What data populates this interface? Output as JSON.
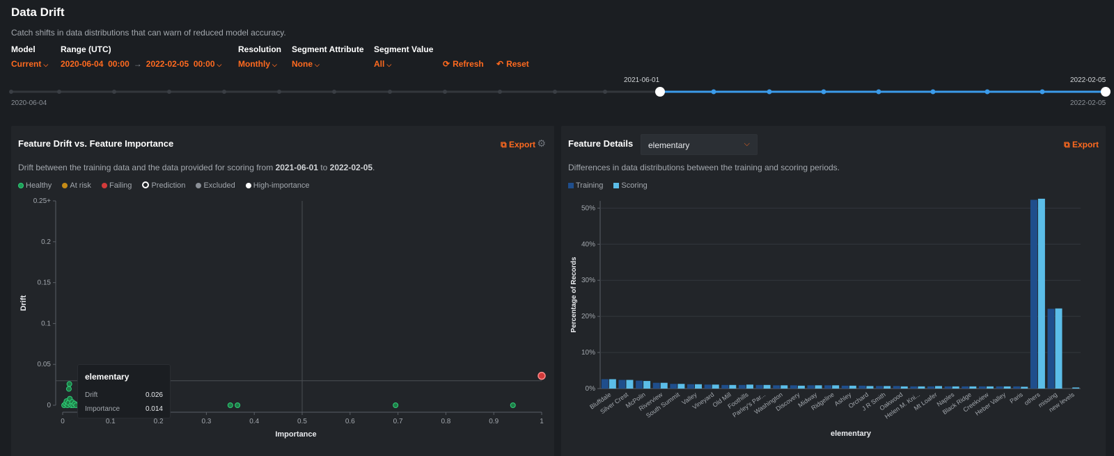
{
  "header": {
    "title": "Data Drift",
    "subtitle": "Catch shifts in data distributions that can warn of reduced model accuracy."
  },
  "controls": {
    "model": {
      "label": "Model",
      "value": "Current"
    },
    "range": {
      "label": "Range (UTC)",
      "start_date": "2020-06-04",
      "start_time": "00:00",
      "end_date": "2022-02-05",
      "end_time": "00:00"
    },
    "resolution": {
      "label": "Resolution",
      "value": "Monthly"
    },
    "segment_attribute": {
      "label": "Segment Attribute",
      "value": "None"
    },
    "segment_value": {
      "label": "Segment Value",
      "value": "All"
    },
    "refresh_label": "Refresh",
    "reset_label": "Reset"
  },
  "timeline": {
    "start_label": "2020-06-04",
    "end_label": "2022-02-05",
    "selected_start_label": "2021-06-01",
    "selected_end_label": "2022-02-05",
    "accent_color": "#3b9bea"
  },
  "drift_panel": {
    "title": "Feature Drift vs. Feature Importance",
    "export_label": "Export",
    "description_prefix": "Drift between the training data and the data provided for scoring from",
    "description_from": "2021-06-01",
    "description_to_word": "to",
    "description_to": "2022-02-05",
    "legend": [
      {
        "label": "Healthy",
        "color": "#1e9e57"
      },
      {
        "label": "At risk",
        "color": "#c58b16"
      },
      {
        "label": "Failing",
        "color": "#d23a3a"
      },
      {
        "label": "Prediction",
        "color": "#ffffff"
      },
      {
        "label": "Excluded",
        "color": "#8b9097"
      },
      {
        "label": "High-importance",
        "color": "#ffffff"
      }
    ],
    "tooltip": {
      "feature": "elementary",
      "drift_label": "Drift",
      "drift_value": "0.026",
      "importance_label": "Importance",
      "importance_value": "0.014"
    }
  },
  "details_panel": {
    "title": "Feature Details",
    "selected_feature": "elementary",
    "export_label": "Export",
    "description": "Differences in data distributions between the training and scoring periods.",
    "legend_training": "Training",
    "legend_scoring": "Scoring"
  },
  "chart_data": [
    {
      "type": "scatter",
      "title": "Feature Drift vs. Feature Importance",
      "xlabel": "Importance",
      "ylabel": "Drift",
      "xlim": [
        0,
        1
      ],
      "ylim": [
        0,
        0.25
      ],
      "x_ticks": [
        "0",
        "0.1",
        "0.2",
        "0.3",
        "0.4",
        "0.5",
        "0.6",
        "0.7",
        "0.8",
        "0.9",
        "1"
      ],
      "y_ticks": [
        "0",
        "0.05",
        "0.1",
        "0.15",
        "0.2",
        "0.25+"
      ],
      "threshold_x": 0.5,
      "threshold_y": 0.03,
      "points": [
        {
          "x": 0.003,
          "y": 0.0,
          "status": "healthy"
        },
        {
          "x": 0.006,
          "y": 0.002,
          "status": "healthy"
        },
        {
          "x": 0.008,
          "y": 0.005,
          "status": "healthy"
        },
        {
          "x": 0.01,
          "y": 0.0,
          "status": "healthy"
        },
        {
          "x": 0.012,
          "y": 0.003,
          "status": "healthy"
        },
        {
          "x": 0.014,
          "y": 0.026,
          "status": "healthy"
        },
        {
          "x": 0.013,
          "y": 0.02,
          "status": "healthy"
        },
        {
          "x": 0.015,
          "y": 0.008,
          "status": "healthy"
        },
        {
          "x": 0.018,
          "y": 0.0,
          "status": "healthy"
        },
        {
          "x": 0.02,
          "y": 0.004,
          "status": "healthy"
        },
        {
          "x": 0.022,
          "y": 0.0,
          "status": "healthy"
        },
        {
          "x": 0.025,
          "y": 0.002,
          "status": "healthy"
        },
        {
          "x": 0.028,
          "y": 0.0,
          "status": "healthy"
        },
        {
          "x": 0.35,
          "y": 0.0,
          "status": "healthy"
        },
        {
          "x": 0.365,
          "y": 0.0,
          "status": "healthy"
        },
        {
          "x": 0.695,
          "y": 0.0,
          "status": "healthy"
        },
        {
          "x": 0.94,
          "y": 0.0,
          "status": "healthy"
        },
        {
          "x": 1.0,
          "y": 0.036,
          "status": "failing"
        }
      ]
    },
    {
      "type": "bar",
      "xlabel": "elementary",
      "ylabel": "Percentage of Records",
      "ylim": [
        0,
        52
      ],
      "y_ticks": [
        "0%",
        "10%",
        "20%",
        "30%",
        "40%",
        "50%"
      ],
      "categories": [
        "Bluffdale",
        "Silver Crest",
        "McPolin",
        "Riverview",
        "South Summit",
        "Valley",
        "Vineyard",
        "Old Mill",
        "Foothills",
        "Parley's Par...",
        "Washington",
        "Discovery",
        "Midway",
        "Ridgeline",
        "Ashley",
        "Orchard",
        "J R Smith",
        "Oakwood",
        "Helen M. Kni...",
        "Mt Loafer",
        "Naples",
        "Black Ridge",
        "Creekview",
        "Heber Valley",
        "Paris",
        "others",
        "missing",
        "new levels"
      ],
      "series": [
        {
          "name": "Training",
          "color": "#1f4e8c",
          "values": [
            2.6,
            2.4,
            2.2,
            1.6,
            1.3,
            1.2,
            1.1,
            1.0,
            1.0,
            1.0,
            0.9,
            0.9,
            0.9,
            0.9,
            0.8,
            0.8,
            0.7,
            0.7,
            0.6,
            0.6,
            0.6,
            0.6,
            0.6,
            0.6,
            0.6,
            52.3,
            22.1,
            0.0
          ]
        },
        {
          "name": "Scoring",
          "color": "#5bbde8",
          "values": [
            2.6,
            2.4,
            2.1,
            1.6,
            1.3,
            1.2,
            1.1,
            1.0,
            1.1,
            1.0,
            0.9,
            0.8,
            0.9,
            0.9,
            0.8,
            0.7,
            0.7,
            0.6,
            0.6,
            0.7,
            0.6,
            0.6,
            0.6,
            0.6,
            0.5,
            52.6,
            22.2,
            0.3
          ]
        }
      ]
    }
  ]
}
